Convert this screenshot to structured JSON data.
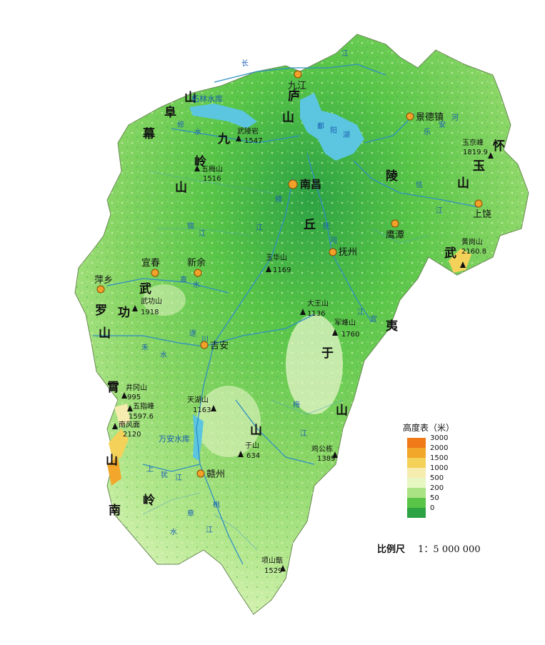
{
  "cities": [
    {
      "name": "九江"
    },
    {
      "name": "景德镇"
    },
    {
      "name": "南昌"
    },
    {
      "name": "上饶"
    },
    {
      "name": "鹰潭"
    },
    {
      "name": "抚州"
    },
    {
      "name": "宜春"
    },
    {
      "name": "新余"
    },
    {
      "name": "萍乡"
    },
    {
      "name": "吉安"
    },
    {
      "name": "赣州"
    }
  ],
  "peaks": [
    {
      "name": "武陵岩",
      "elevation": "1547"
    },
    {
      "name": "五梅山",
      "elevation": "1516"
    },
    {
      "name": "玉京峰",
      "elevation": "1819.9"
    },
    {
      "name": "黄岗山",
      "elevation": "2160.8"
    },
    {
      "name": "玉华山",
      "elevation": "1169"
    },
    {
      "name": "武功山",
      "elevation": "1918"
    },
    {
      "name": "大王山",
      "elevation": "1136"
    },
    {
      "name": "军峰山",
      "elevation": "1760"
    },
    {
      "name": "井冈山",
      "elevation": "995"
    },
    {
      "name": "五指峰",
      "elevation": "1597.6"
    },
    {
      "name": "南风面",
      "elevation": "2120"
    },
    {
      "name": "天湖山",
      "elevation": "1163"
    },
    {
      "name": "于山",
      "elevation": "634"
    },
    {
      "name": "鸡公栋",
      "elevation": "1389"
    },
    {
      "name": "项山甑",
      "elevation": "1529"
    }
  ],
  "ranges": {
    "mufu": [
      "幕",
      "阜",
      "山"
    ],
    "jiuling": [
      "九",
      "岭",
      "山"
    ],
    "lushan": [
      "庐",
      "山"
    ],
    "huaiyu": [
      "怀",
      "玉",
      "山"
    ],
    "wuyi_se": [
      "武"
    ],
    "wuyi_e": [
      "夷"
    ],
    "luoxiao": [
      "罗",
      "霄",
      "山"
    ],
    "wugong": [
      "武",
      "功",
      "山"
    ],
    "yushan_s": [
      "山",
      "于"
    ],
    "nanling": [
      "南",
      "岭"
    ],
    "poyang_plain": [
      "丘",
      "陵"
    ]
  },
  "waters": {
    "yangtze": [
      "长",
      "江"
    ],
    "gan": [
      "赣",
      "江"
    ],
    "fu": [
      "抚",
      "河"
    ],
    "xin": [
      "信",
      "江"
    ],
    "rao": [
      "乐",
      "安",
      "河"
    ],
    "xiu": [
      "修",
      "水"
    ],
    "yuan": [
      "袁",
      "水"
    ],
    "lake_char": [
      "鄱",
      "阳",
      "湖"
    ],
    "zhelin": "柘林水库",
    "wanan": "万安水库",
    "misc": [
      "锦",
      "江",
      "禾",
      "水",
      "蜀",
      "水",
      "遂",
      "川",
      "江",
      "梅",
      "江",
      "章",
      "水",
      "桃",
      "江",
      "贡",
      "水",
      "上",
      "犹",
      "江",
      "盱",
      "江",
      "宜",
      "黄",
      "水",
      "泸",
      "水",
      "孤",
      "江",
      "平",
      "江"
    ]
  },
  "legend": {
    "title": "高度表（米）",
    "items": [
      {
        "value": "3000",
        "color": "#f07a18"
      },
      {
        "value": "2000",
        "color": "#f2a62a"
      },
      {
        "value": "1500",
        "color": "#f4d25a"
      },
      {
        "value": "1000",
        "color": "#f7ecb0"
      },
      {
        "value": "500",
        "color": "#e6f7c4"
      },
      {
        "value": "200",
        "color": "#a9e383"
      },
      {
        "value": "50",
        "color": "#58c548"
      },
      {
        "value": "0",
        "color": "#2da243"
      }
    ]
  },
  "scale": {
    "label": "比例尺",
    "value": "1：5 000 000"
  },
  "colors": {
    "water": "#5cc6e0",
    "city_fill": "#f2a12a",
    "river": "#2f8fc2",
    "land_mid": "#8ad666"
  }
}
